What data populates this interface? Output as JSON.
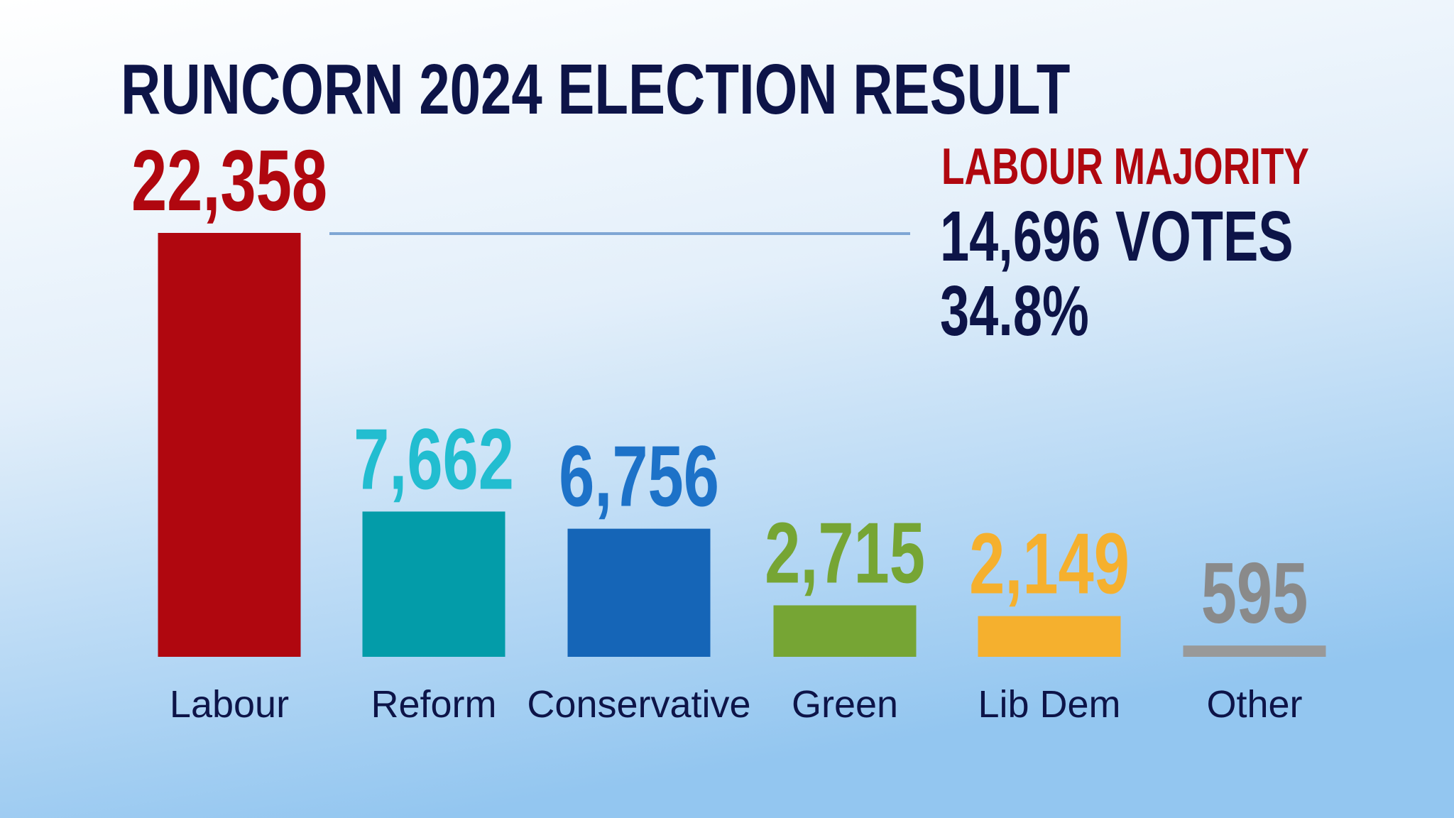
{
  "chart_data": {
    "type": "bar",
    "title": "RUNCORN 2024 ELECTION RESULT",
    "categories": [
      "Labour",
      "Reform",
      "Conservative",
      "Green",
      "Lib Dem",
      "Other"
    ],
    "values": [
      22358,
      7662,
      6756,
      2715,
      2149,
      595
    ],
    "value_labels": [
      "22,358",
      "7,662",
      "6,756",
      "2,715",
      "2,149",
      "595"
    ],
    "colors": [
      "#b0070f",
      "#039ca9",
      "#1565b7",
      "#76a534",
      "#f5b02e",
      "#999999"
    ],
    "label_colors": [
      "#b0070f",
      "#22bdd0",
      "#1d72c8",
      "#76a534",
      "#f5b02e",
      "#8a8a8a"
    ],
    "annotations": [
      "LABOUR MAJORITY",
      "14,696 VOTES",
      "34.8%"
    ]
  }
}
